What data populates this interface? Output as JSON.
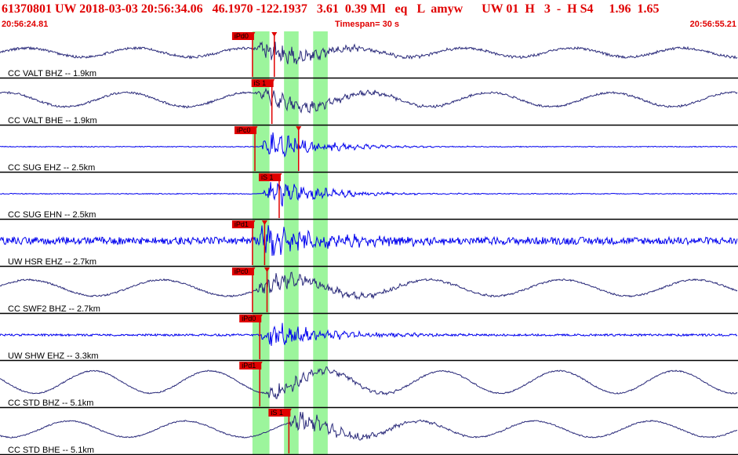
{
  "header": {
    "title": "61370801 UW 2018-03-03 20:56:34.06   46.1970 -122.1937   3.61  0.39 Ml   eq   L  amyw      UW 01  H   3  -  H S4     1.96  1.65",
    "start_time": "20:56:24.81",
    "timespan": "Timespan=  30 s",
    "end_time": "20:56:55.21"
  },
  "colors": {
    "title": "#e00000",
    "phase_pick": "#e00000",
    "window_highlight": "#9cf59c",
    "trace_dark": "#2a2a7a",
    "trace_blue": "#0000ee",
    "divider": "#000000"
  },
  "chart_data": {
    "type": "line",
    "x_range_s": [
      0,
      30.4
    ],
    "pick_windows_s": [
      [
        10.4,
        11.1
      ],
      [
        11.7,
        12.3
      ],
      [
        12.9,
        13.5
      ]
    ],
    "traces": [
      {
        "label": "CC VALT BHZ -- 1.9km",
        "color": "dark",
        "picks": [
          {
            "label": "iPd0",
            "t": 10.4
          },
          {
            "label": "",
            "t": 11.3
          }
        ],
        "arrival_s": 10.5,
        "pre_noise": 0.06,
        "peak_amp": 0.9,
        "coda_s": 7,
        "swell": 0.22,
        "swell_period_s": 4.5
      },
      {
        "label": "CC VALT BHE -- 1.9km",
        "color": "dark",
        "picks": [
          {
            "label": "iS 1",
            "t": 11.2
          }
        ],
        "arrival_s": 10.6,
        "pre_noise": 0.05,
        "peak_amp": 0.7,
        "coda_s": 8,
        "swell": 0.35,
        "swell_period_s": 5.0
      },
      {
        "label": "CC SUG EHZ -- 2.5km",
        "color": "blue",
        "picks": [
          {
            "label": "iPc0",
            "t": 10.5
          },
          {
            "label": "",
            "t": 12.3
          }
        ],
        "arrival_s": 10.7,
        "pre_noise": 0.02,
        "peak_amp": 1.0,
        "coda_s": 6,
        "swell": 0.0,
        "swell_period_s": 5.0
      },
      {
        "label": "CC SUG EHN -- 2.5km",
        "color": "blue",
        "picks": [
          {
            "label": "iS 1",
            "t": 11.5
          }
        ],
        "arrival_s": 10.8,
        "pre_noise": 0.02,
        "peak_amp": 0.95,
        "coda_s": 6,
        "swell": 0.0,
        "swell_period_s": 5.0
      },
      {
        "label": "UW HSR EHZ -- 2.7km",
        "color": "blue",
        "picks": [
          {
            "label": "iPd1",
            "t": 10.4
          },
          {
            "label": "",
            "t": 10.9
          }
        ],
        "arrival_s": 10.4,
        "pre_noise": 0.18,
        "peak_amp": 1.0,
        "coda_s": 9,
        "swell": 0.0,
        "swell_period_s": 5.0
      },
      {
        "label": "CC SWF2 BHZ -- 2.7km",
        "color": "dark",
        "picks": [
          {
            "label": "iPc0",
            "t": 10.4
          },
          {
            "label": "",
            "t": 11.0
          }
        ],
        "arrival_s": 10.5,
        "pre_noise": 0.04,
        "peak_amp": 0.75,
        "coda_s": 8,
        "swell": 0.4,
        "swell_period_s": 5.5
      },
      {
        "label": "UW SHW EHZ -- 3.3km",
        "color": "blue",
        "picks": [
          {
            "label": "iPd0",
            "t": 10.7
          }
        ],
        "arrival_s": 10.7,
        "pre_noise": 0.05,
        "peak_amp": 0.85,
        "coda_s": 7,
        "swell": 0.0,
        "swell_period_s": 5.0
      },
      {
        "label": "CC STD BHZ -- 5.1km",
        "color": "dark",
        "picks": [
          {
            "label": "iPd1",
            "t": 10.7
          }
        ],
        "arrival_s": 10.8,
        "pre_noise": 0.03,
        "peak_amp": 0.6,
        "coda_s": 7,
        "swell": 0.55,
        "swell_period_s": 4.8
      },
      {
        "label": "CC STD BHE -- 5.1km",
        "color": "dark",
        "picks": [
          {
            "label": "iS 1",
            "t": 11.9
          }
        ],
        "arrival_s": 11.8,
        "pre_noise": 0.03,
        "peak_amp": 0.75,
        "coda_s": 7,
        "swell": 0.4,
        "swell_period_s": 4.8
      }
    ]
  }
}
